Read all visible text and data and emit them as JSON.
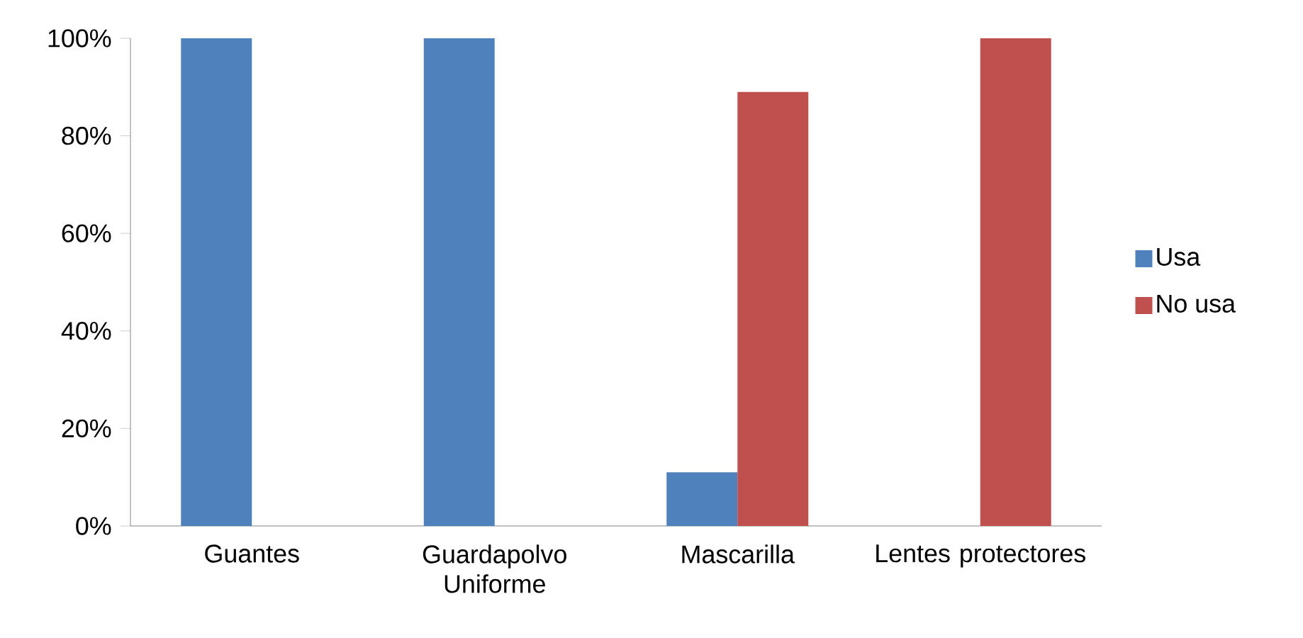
{
  "chart_data": {
    "type": "bar",
    "categories": [
      "Guantes",
      "Guardapolvo Uniforme",
      "Mascarilla",
      "Lentes protectores"
    ],
    "series": [
      {
        "name": "Usa",
        "color": "#4f81bd",
        "values": [
          100,
          100,
          11,
          0
        ]
      },
      {
        "name": "No usa",
        "color": "#c0504d",
        "values": [
          0,
          0,
          89,
          100
        ]
      }
    ],
    "ylim": [
      0,
      100
    ],
    "yticks": [
      {
        "value": 0,
        "label": "0%"
      },
      {
        "value": 20,
        "label": "20%"
      },
      {
        "value": 40,
        "label": "40%"
      },
      {
        "value": 60,
        "label": "60%"
      },
      {
        "value": 80,
        "label": "80%"
      },
      {
        "value": 100,
        "label": "100%"
      }
    ],
    "grid": false,
    "legend": "right"
  }
}
